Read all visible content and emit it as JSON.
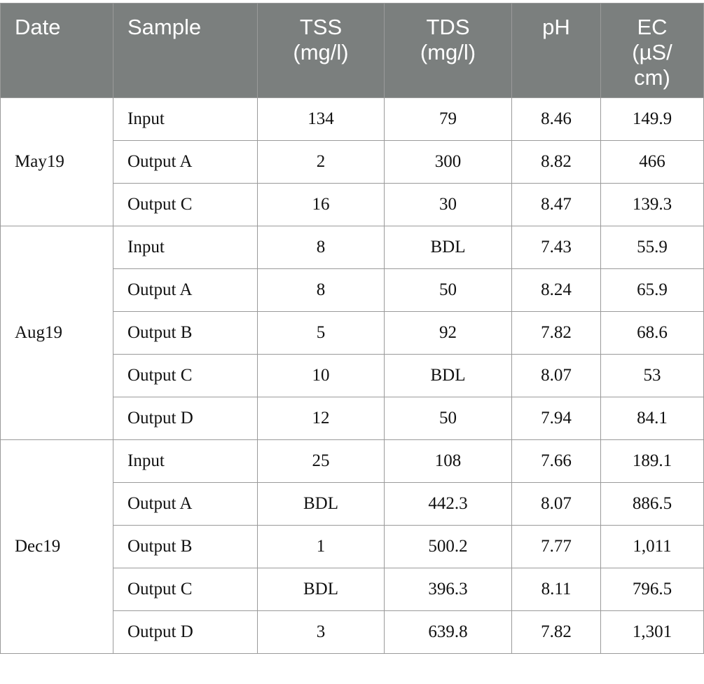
{
  "headers": {
    "date": "Date",
    "sample": "Sample",
    "tss": [
      "TSS",
      "(mg/l)"
    ],
    "tds": [
      "TDS",
      "(mg/l)"
    ],
    "ph": "pH",
    "ec": [
      "EC",
      "(µS/",
      "cm)"
    ]
  },
  "groups": [
    {
      "date": "May19",
      "rows": [
        {
          "sample": "Input",
          "tss": "134",
          "tds": "79",
          "ph": "8.46",
          "ec": "149.9"
        },
        {
          "sample": "Output A",
          "tss": "2",
          "tds": "300",
          "ph": "8.82",
          "ec": "466"
        },
        {
          "sample": "Output C",
          "tss": "16",
          "tds": "30",
          "ph": "8.47",
          "ec": "139.3"
        }
      ]
    },
    {
      "date": "Aug19",
      "rows": [
        {
          "sample": "Input",
          "tss": "8",
          "tds": "BDL",
          "ph": "7.43",
          "ec": "55.9"
        },
        {
          "sample": "Output A",
          "tss": "8",
          "tds": "50",
          "ph": "8.24",
          "ec": "65.9"
        },
        {
          "sample": "Output B",
          "tss": "5",
          "tds": "92",
          "ph": "7.82",
          "ec": "68.6"
        },
        {
          "sample": "Output C",
          "tss": "10",
          "tds": "BDL",
          "ph": "8.07",
          "ec": "53"
        },
        {
          "sample": "Output D",
          "tss": "12",
          "tds": "50",
          "ph": "7.94",
          "ec": "84.1"
        }
      ]
    },
    {
      "date": "Dec19",
      "rows": [
        {
          "sample": "Input",
          "tss": "25",
          "tds": "108",
          "ph": "7.66",
          "ec": "189.1"
        },
        {
          "sample": "Output A",
          "tss": "BDL",
          "tds": "442.3",
          "ph": "8.07",
          "ec": "886.5"
        },
        {
          "sample": "Output B",
          "tss": "1",
          "tds": "500.2",
          "ph": "7.77",
          "ec": "1,011"
        },
        {
          "sample": "Output C",
          "tss": "BDL",
          "tds": "396.3",
          "ph": "8.11",
          "ec": "796.5"
        },
        {
          "sample": "Output D",
          "tss": "3",
          "tds": "639.8",
          "ph": "7.82",
          "ec": "1,301"
        }
      ]
    }
  ]
}
